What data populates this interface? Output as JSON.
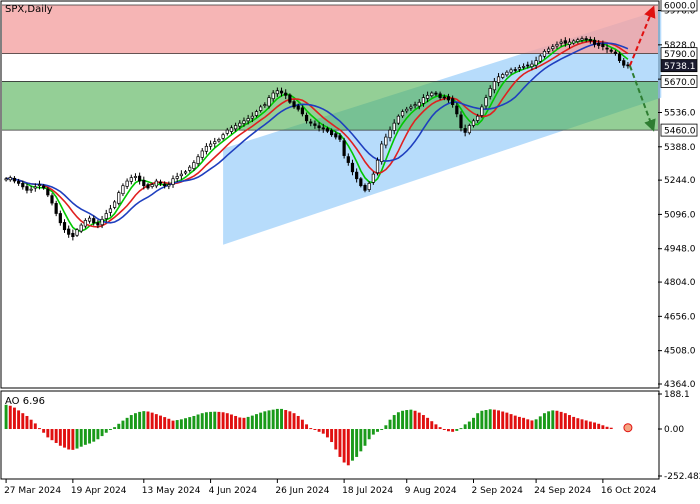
{
  "header": {
    "title": "SPX,Daily",
    "ao_label": "AO 6.96"
  },
  "chart_data": {
    "type": "candlestick",
    "title": "SPX,Daily",
    "price_axis": {
      "min": 4364.0,
      "max": 6000.0,
      "ticks": [
        "5976.0",
        "5828.0",
        "5680.0",
        "5536.0",
        "5388.0",
        "5244.0",
        "5096.0",
        "4948.0",
        "4804.0",
        "4656.0",
        "4508.0",
        "4364.0"
      ]
    },
    "price_tick_values": [
      5976,
      5828,
      5680,
      5536,
      5388,
      5244,
      5096,
      4948,
      4804,
      4656,
      4508,
      4364
    ],
    "level_labels": [
      {
        "text": "6000.0",
        "value": 6000,
        "style": "boxed"
      },
      {
        "text": "5790.0",
        "value": 5790,
        "style": "boxed"
      },
      {
        "text": "5738.1",
        "value": 5738.1,
        "style": "dark"
      },
      {
        "text": "5670.0",
        "value": 5670,
        "style": "boxed"
      },
      {
        "text": "5460.0",
        "value": 5460,
        "style": "boxed"
      }
    ],
    "zones": {
      "resistance": [
        5790,
        6000
      ],
      "support": [
        5460,
        5670
      ]
    },
    "channel": {
      "start_index": 52,
      "end_index": 157,
      "low_start": 4965,
      "low_end": 5600,
      "high_start": 5380,
      "high_end": 5980
    },
    "x_axis_labels": [
      "27 Mar 2024",
      "19 Apr 2024",
      "13 May 2024",
      "4 Jun 2024",
      "26 Jun 2024",
      "18 Jul 2024",
      "9 Aug 2024",
      "2 Sep 2024",
      "24 Sep 2024",
      "16 Oct 2024"
    ],
    "x_label_indices": [
      0,
      16,
      33,
      49,
      65,
      81,
      96,
      112,
      127,
      143
    ],
    "closes": [
      5250,
      5255,
      5240,
      5230,
      5215,
      5200,
      5205,
      5215,
      5225,
      5210,
      5180,
      5145,
      5100,
      5060,
      5030,
      5010,
      5000,
      5030,
      5050,
      5070,
      5080,
      5060,
      5050,
      5075,
      5100,
      5120,
      5150,
      5190,
      5220,
      5240,
      5255,
      5260,
      5240,
      5220,
      5210,
      5225,
      5240,
      5230,
      5220,
      5225,
      5250,
      5260,
      5270,
      5280,
      5300,
      5320,
      5345,
      5370,
      5390,
      5400,
      5410,
      5420,
      5440,
      5460,
      5470,
      5480,
      5490,
      5500,
      5510,
      5520,
      5540,
      5560,
      5570,
      5600,
      5620,
      5630,
      5620,
      5610,
      5580,
      5560,
      5550,
      5530,
      5500,
      5490,
      5480,
      5470,
      5465,
      5455,
      5440,
      5430,
      5420,
      5350,
      5320,
      5280,
      5250,
      5220,
      5200,
      5230,
      5270,
      5330,
      5400,
      5430,
      5460,
      5490,
      5520,
      5540,
      5550,
      5560,
      5570,
      5580,
      5600,
      5610,
      5620,
      5615,
      5600,
      5600,
      5590,
      5570,
      5530,
      5470,
      5450,
      5480,
      5500,
      5520,
      5560,
      5600,
      5640,
      5670,
      5690,
      5700,
      5710,
      5720,
      5720,
      5730,
      5735,
      5740,
      5745,
      5760,
      5780,
      5800,
      5810,
      5820,
      5830,
      5840,
      5835,
      5840,
      5845,
      5850,
      5855,
      5850,
      5845,
      5830,
      5825,
      5820,
      5810,
      5800,
      5790,
      5760,
      5740,
      5738.1
    ],
    "ao": [
      130,
      125,
      115,
      100,
      85,
      70,
      50,
      30,
      5,
      -20,
      -45,
      -60,
      -75,
      -90,
      -100,
      -110,
      -112,
      -105,
      -95,
      -85,
      -78,
      -68,
      -55,
      -38,
      -20,
      -5,
      10,
      28,
      45,
      60,
      75,
      85,
      92,
      96,
      94,
      88,
      80,
      72,
      64,
      55,
      45,
      48,
      52,
      58,
      64,
      70,
      78,
      85,
      90,
      92,
      93,
      92,
      90,
      85,
      78,
      70,
      62,
      60,
      65,
      72,
      80,
      88,
      95,
      100,
      104,
      108,
      108,
      102,
      95,
      85,
      70,
      50,
      25,
      5,
      -5,
      -15,
      -25,
      -45,
      -70,
      -110,
      -150,
      -180,
      -195,
      -170,
      -150,
      -120,
      -90,
      -55,
      -30,
      -15,
      -5,
      20,
      50,
      75,
      90,
      98,
      102,
      104,
      98,
      88,
      75,
      60,
      42,
      25,
      10,
      -5,
      -12,
      -15,
      -10,
      5,
      25,
      40,
      60,
      85,
      98,
      102,
      106,
      104,
      100,
      94,
      88,
      80,
      72,
      65,
      60,
      52,
      46,
      52,
      68,
      85,
      95,
      100,
      98,
      92,
      85,
      75,
      65,
      58,
      52,
      46,
      40,
      35,
      28,
      20,
      12,
      6.96
    ],
    "ao_axis": {
      "ticks": [
        "188.1",
        "0.00",
        "-252.482"
      ],
      "tick_values": [
        188.1,
        0,
        -252.482
      ]
    },
    "ao_value": 6.96,
    "forecast": {
      "up_target": 6000,
      "down_target": 5460
    },
    "grid": false
  },
  "colors": {
    "resistance_fill": "#f4a3a3",
    "support_fill": "#4caf50",
    "channel_fill": "#90caf9",
    "bull_candle": "#ffffff",
    "bear_candle": "#000000",
    "ma_fast": "#00c800",
    "ma_mid": "#e02020",
    "ma_slow": "#1f3fbf",
    "ao_up": "#1a9a1a",
    "ao_down": "#e01010",
    "arrow_up": "#e01010",
    "arrow_down": "#2e7d32"
  }
}
